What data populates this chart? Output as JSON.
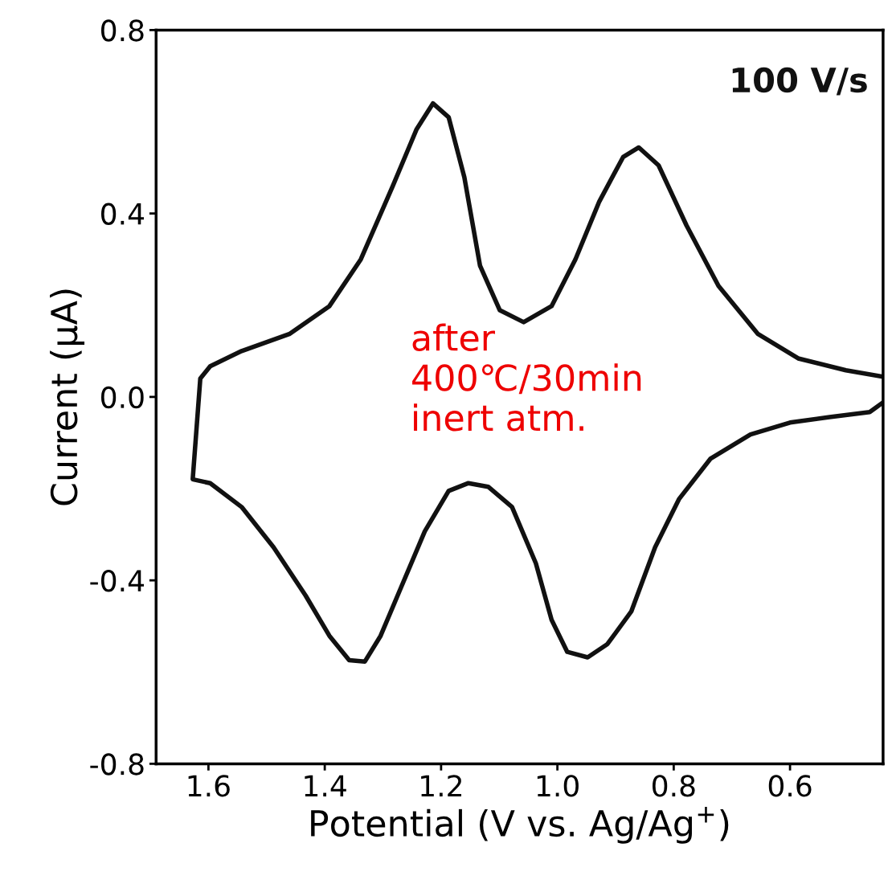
{
  "chart_data": {
    "type": "line",
    "xlabel": "Potential (V vs. Ag/Ag$^{+}$)",
    "ylabel": "Current (μA)",
    "annotations": [
      "100 V/s",
      "after\n400℃/30min\ninert atm."
    ],
    "xlim": [
      1.69,
      0.44
    ],
    "ylim": [
      -0.8,
      0.8
    ],
    "xticks": [
      1.6,
      1.4,
      1.2,
      {
        "value": 1.0,
        "label": "1.0"
      },
      0.8,
      0.6
    ],
    "yticks": [
      0.8,
      0.4,
      {
        "value": 0,
        "label": "0.0"
      },
      {
        "value": -0.4,
        "label": "-0.4"
      },
      {
        "value": -0.8,
        "label": "-0.8"
      }
    ],
    "grid": false,
    "legend": false,
    "line_style": "solid",
    "marker": "none",
    "series": [
      {
        "color": "#111111",
        "x": [
          1.627,
          1.614,
          1.597,
          1.543,
          1.461,
          1.392,
          1.338,
          1.283,
          1.242,
          1.214,
          1.187,
          1.16,
          1.133,
          1.099,
          1.058,
          1.01,
          0.969,
          0.928,
          0.887,
          0.86,
          0.826,
          0.778,
          0.723,
          0.655,
          0.586,
          0.504,
          0.44
        ],
        "values": [
          -0.179,
          0.04,
          0.067,
          0.1,
          0.137,
          0.198,
          0.3,
          0.46,
          0.584,
          0.64,
          0.61,
          0.479,
          0.286,
          0.189,
          0.163,
          0.198,
          0.3,
          0.426,
          0.523,
          0.544,
          0.505,
          0.374,
          0.242,
          0.137,
          0.084,
          0.058,
          0.044
        ]
      },
      {
        "color": "#111111",
        "x": [
          0.44,
          0.463,
          0.532,
          0.6,
          0.668,
          0.737,
          0.791,
          0.832,
          0.873,
          0.914,
          0.948,
          0.983,
          1.01,
          1.037,
          1.078,
          1.119,
          1.153,
          1.187,
          1.228,
          1.269,
          1.304,
          1.331,
          1.358,
          1.392,
          1.433,
          1.488,
          1.543,
          1.597,
          1.626
        ],
        "values": [
          -0.012,
          -0.033,
          -0.044,
          -0.056,
          -0.082,
          -0.135,
          -0.223,
          -0.328,
          -0.468,
          -0.539,
          -0.568,
          -0.556,
          -0.486,
          -0.363,
          -0.24,
          -0.196,
          -0.188,
          -0.205,
          -0.293,
          -0.416,
          -0.521,
          -0.577,
          -0.574,
          -0.521,
          -0.433,
          -0.328,
          -0.24,
          -0.188,
          -0.18
        ]
      }
    ]
  }
}
